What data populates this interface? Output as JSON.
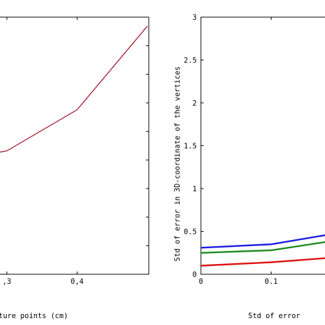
{
  "chart_data": [
    {
      "type": "line",
      "xlabel": "ture points (cm)",
      "ylabel": "",
      "xlim": [
        0.2,
        0.5
      ],
      "x_ticks": [
        0.3,
        0.4
      ],
      "x_tick_labels": [
        ",3",
        "0,4"
      ],
      "series": [
        {
          "color": "#a3192e",
          "x": [
            0.2,
            0.3,
            0.4,
            0.5
          ],
          "y": [
            0.43,
            0.48,
            0.64,
            0.965
          ]
        }
      ]
    },
    {
      "type": "line",
      "xlabel": "Std of error",
      "ylabel": "Std of error in 3D-coordinate of the vertices",
      "xlim": [
        0,
        0.18
      ],
      "ylim": [
        0,
        3
      ],
      "x_ticks": [
        0,
        0.1
      ],
      "x_tick_labels": [
        "0",
        "0.1"
      ],
      "y_ticks": [
        0,
        0.5,
        1,
        1.5,
        2,
        2.5,
        3
      ],
      "y_tick_labels": [
        "0",
        "0.5",
        "1",
        "1.5",
        "2",
        "2.5",
        "3"
      ],
      "series": [
        {
          "color": "#1a1ae0",
          "x": [
            0,
            0.1,
            0.18
          ],
          "y": [
            0.31,
            0.35,
            0.46
          ]
        },
        {
          "color": "#1e8a1e",
          "x": [
            0,
            0.1,
            0.18
          ],
          "y": [
            0.25,
            0.28,
            0.38
          ]
        },
        {
          "color": "#dd1111",
          "x": [
            0,
            0.1,
            0.18
          ],
          "y": [
            0.1,
            0.14,
            0.19
          ]
        }
      ]
    }
  ]
}
